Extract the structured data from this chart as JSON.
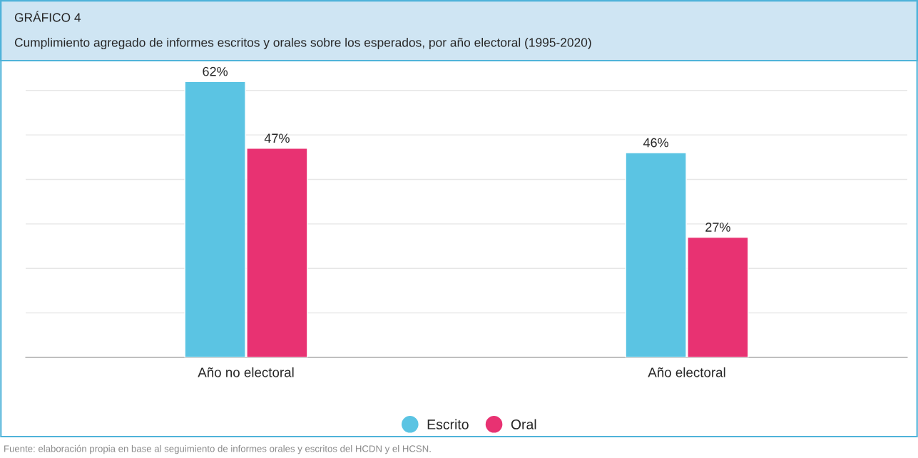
{
  "chart_data": {
    "type": "bar",
    "title": "GRÁFICO 4",
    "subtitle": "Cumplimiento agregado de informes escritos y orales sobre los esperados, por año electoral (1995-2020)",
    "categories": [
      "Año no electoral",
      "Año electoral"
    ],
    "series": [
      {
        "name": "Escrito",
        "color": "#5bc4e3",
        "values": [
          62,
          46
        ],
        "value_labels": [
          "62%",
          "46%"
        ]
      },
      {
        "name": "Oral",
        "color": "#e83272",
        "values": [
          47,
          27
        ],
        "value_labels": [
          "47%",
          "27%"
        ]
      }
    ],
    "tick_labels": "x",
    "grid": "y",
    "legend": "bottom",
    "marker": "circle",
    "annotations": [
      "Fuente: elaboración propia en base al seguimiento de informes orales y escritos del HCDN y el HCSN."
    ]
  }
}
